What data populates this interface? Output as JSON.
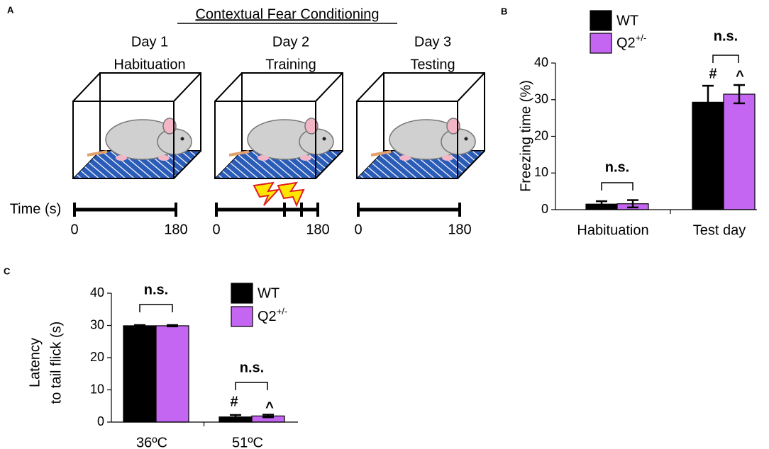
{
  "diagram": {
    "panel": "A",
    "title": "Contextual Fear Conditioning",
    "days": [
      {
        "day": "Day 1",
        "phase": "Habituation"
      },
      {
        "day": "Day 2",
        "phase": "Training"
      },
      {
        "day": "Day 3",
        "phase": "Testing"
      }
    ],
    "time_label": "Time (s)",
    "timeline_labels": [
      [
        "0",
        "180"
      ],
      [
        "0",
        "180"
      ],
      [
        "0",
        "180"
      ]
    ]
  },
  "chart_data": [
    {
      "type": "bar",
      "panel": "B",
      "ylabel": [
        "Freezing time (%)"
      ],
      "categories": [
        "Habituation",
        "Test day"
      ],
      "series": [
        {
          "name": "WT",
          "color": "#000000",
          "values": [
            1.5,
            29.3
          ],
          "errors": [
            0.8,
            4.5
          ]
        },
        {
          "name": "Q2+/-",
          "color": "#c466f2",
          "values": [
            1.6,
            31.5
          ],
          "errors": [
            1.0,
            2.5
          ]
        }
      ],
      "ylim": [
        0,
        40
      ],
      "yticks": [
        0,
        10,
        20,
        30,
        40
      ],
      "annotations": [
        "n.s.",
        "n.s.",
        "#",
        "^"
      ]
    },
    {
      "type": "bar",
      "panel": "C",
      "ylabel": [
        "Latency",
        "to tail flick (s)"
      ],
      "categories": [
        "36ºC",
        "51ºC"
      ],
      "series": [
        {
          "name": "WT",
          "color": "#000000",
          "values": [
            29.9,
            1.6
          ],
          "errors": [
            0.2,
            0.6
          ]
        },
        {
          "name": "Q2+/-",
          "color": "#c466f2",
          "values": [
            29.9,
            1.9
          ],
          "errors": [
            0.2,
            0.4
          ]
        }
      ],
      "ylim": [
        0,
        40
      ],
      "yticks": [
        0,
        10,
        20,
        30,
        40
      ],
      "annotations": [
        "n.s.",
        "n.s.",
        "#",
        "^"
      ]
    }
  ]
}
